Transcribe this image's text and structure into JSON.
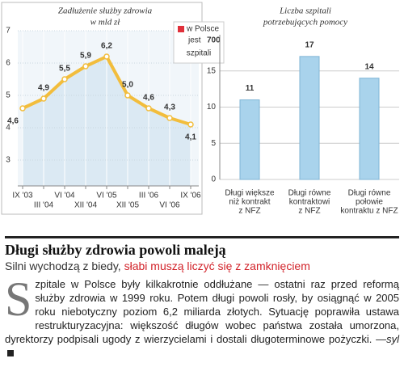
{
  "chart_data": [
    {
      "type": "line",
      "title": [
        "Zadłużenie służby zdrowia",
        "w mld zł"
      ],
      "categories": [
        "IX '03",
        "III '04",
        "VI '04",
        "XII '04",
        "VI '05",
        "XII '05",
        "III '06",
        "VI '06",
        "IX '06"
      ],
      "values": [
        4.6,
        4.9,
        5.5,
        5.9,
        6.2,
        5.0,
        4.6,
        4.3,
        4.1
      ],
      "value_labels": [
        "4,6",
        "4,9",
        "5,5",
        "5,9",
        "6,2",
        "5,0",
        "4,6",
        "4,3",
        "4,1"
      ],
      "ylim": [
        2.2,
        7
      ],
      "yticks": [
        3,
        4,
        5,
        6,
        7
      ],
      "grid": true,
      "color": "#f2bd3c",
      "area_color": "#dbe9f3",
      "highlight_last_color": "#e0303a",
      "annotation": {
        "lines": [
          "w Polsce",
          "jest",
          "700",
          "szpitali"
        ],
        "marker_color": "#e0303a"
      }
    },
    {
      "type": "bar",
      "title": [
        "Liczba szpitali",
        "potrzebujących pomocy"
      ],
      "categories": [
        [
          "Długi większe",
          "niż kontrakt",
          "z NFZ"
        ],
        [
          "Długi równe",
          "kontraktowi",
          "z NFZ"
        ],
        [
          "Długi równe",
          "połowie",
          "kontraktu z NFZ"
        ]
      ],
      "values": [
        11,
        17,
        14
      ],
      "ylim": [
        0,
        20
      ],
      "yticks": [
        0,
        5,
        10,
        15
      ],
      "grid": true,
      "color": "#a9d3ec"
    }
  ],
  "article": {
    "headline": "Długi służby zdrowia powoli maleją",
    "subhead": [
      "Silni wychodzą z biedy,",
      "słabi muszą liczyć się z zamknięciem"
    ],
    "drop_cap": "S",
    "text": "zpitale w Polsce były kilkakrotnie oddłużane — ostatni raz przed reformą służby zdrowia w 1999 roku. Potem długi powoli rosły, by osiągnąć w 2005 roku niebotyczny poziom 6,2 miliarda złotych. Sytuację poprawiła ustawa restrukturyzacyjna: większość długów wobec państwa została umorzona, dyrektorzy podpisali ugody z wierzycielami i dostali długoterminowe pożyczki.",
    "signature": "—syl"
  }
}
